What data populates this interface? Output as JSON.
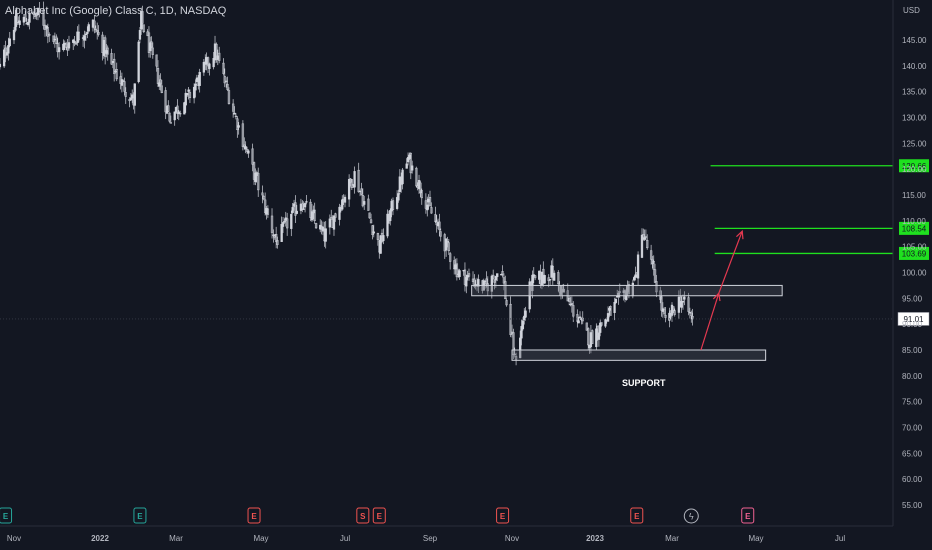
{
  "header": {
    "title": "Alphabet Inc (Google) Class C, 1D, NASDAQ"
  },
  "annotations": {
    "support_label": "SUPPORT"
  },
  "colors": {
    "background": "#131722",
    "candle": "#d1d4dc",
    "target_line": "#1fe01f",
    "target_badge": "#1fe01f",
    "arrow": "#e53950",
    "zone_fill": "#50535e",
    "zone_border": "#d1d4dc",
    "earnings_green": "#26a69a",
    "earnings_red": "#ef5350"
  },
  "chart_data": {
    "type": "candlestick",
    "title": "Alphabet Inc (Google) Class C, 1D, NASDAQ",
    "y_unit": "USD",
    "ylim": [
      51.5,
      153
    ],
    "y_ticks": [
      "145.00",
      "140.00",
      "135.00",
      "130.00",
      "125.00",
      "120.00",
      "115.00",
      "110.00",
      "105.00",
      "100.00",
      "95.00",
      "90.00",
      "85.00",
      "80.00",
      "75.00",
      "70.00",
      "65.00",
      "60.00",
      "55.00"
    ],
    "y_tick_values": [
      145,
      140,
      135,
      130,
      125,
      120,
      115,
      110,
      105,
      100,
      95,
      90,
      85,
      80,
      75,
      70,
      65,
      60,
      55
    ],
    "x_ticks": [
      "Nov",
      "2022",
      "Mar",
      "May",
      "Jul",
      "Sep",
      "Nov",
      "2023",
      "Mar",
      "May",
      "Jul"
    ],
    "x_tick_dates": [
      "2021-11",
      "2022-01",
      "2022-03",
      "2022-05",
      "2022-07",
      "2022-09",
      "2022-11",
      "2023-01",
      "2023-03",
      "2023-05",
      "2023-07"
    ],
    "price_path": [
      {
        "date": "2021-10-20",
        "close": 138
      },
      {
        "date": "2021-11-01",
        "close": 148
      },
      {
        "date": "2021-11-19",
        "close": 150
      },
      {
        "date": "2021-12-03",
        "close": 143
      },
      {
        "date": "2021-12-27",
        "close": 148
      },
      {
        "date": "2022-01-10",
        "close": 140
      },
      {
        "date": "2022-01-27",
        "close": 133
      },
      {
        "date": "2022-02-02",
        "close": 149
      },
      {
        "date": "2022-02-24",
        "close": 130
      },
      {
        "date": "2022-03-10",
        "close": 134
      },
      {
        "date": "2022-03-29",
        "close": 143
      },
      {
        "date": "2022-04-14",
        "close": 129
      },
      {
        "date": "2022-05-12",
        "close": 106
      },
      {
        "date": "2022-05-30",
        "close": 114
      },
      {
        "date": "2022-06-16",
        "close": 107
      },
      {
        "date": "2022-07-08",
        "close": 119
      },
      {
        "date": "2022-07-26",
        "close": 105
      },
      {
        "date": "2022-08-16",
        "close": 122
      },
      {
        "date": "2022-09-06",
        "close": 109
      },
      {
        "date": "2022-09-22",
        "close": 100
      },
      {
        "date": "2022-10-12",
        "close": 97
      },
      {
        "date": "2022-10-24",
        "close": 101
      },
      {
        "date": "2022-11-03",
        "close": 83
      },
      {
        "date": "2022-11-15",
        "close": 98
      },
      {
        "date": "2022-11-30",
        "close": 100
      },
      {
        "date": "2022-12-28",
        "close": 87
      },
      {
        "date": "2023-01-12",
        "close": 92
      },
      {
        "date": "2023-02-01",
        "close": 99
      },
      {
        "date": "2023-02-07",
        "close": 108
      },
      {
        "date": "2023-02-24",
        "close": 90
      },
      {
        "date": "2023-03-07",
        "close": 95
      },
      {
        "date": "2023-03-16",
        "close": 91
      }
    ],
    "last_price": "91.01",
    "last_price_value": 91.01,
    "target_levels": [
      {
        "label": "120.66",
        "value": 120.66
      },
      {
        "label": "108.54",
        "value": 108.54
      },
      {
        "label": "103.69",
        "value": 103.69
      }
    ],
    "zones": [
      {
        "name": "resistance",
        "from": 95.5,
        "to": 97.5,
        "start": "2022-10-02",
        "end": "2023-05-20"
      },
      {
        "name": "support",
        "from": 83,
        "to": 85,
        "start": "2022-11-01",
        "end": "2023-05-08"
      }
    ],
    "projection_arrows": [
      {
        "from": {
          "date": "2023-03-22",
          "value": 85
        },
        "to": {
          "date": "2023-04-04",
          "value": 96
        }
      },
      {
        "from": {
          "date": "2023-04-04",
          "value": 96
        },
        "to": {
          "date": "2023-04-21",
          "value": 108
        }
      }
    ],
    "earnings_events": [
      {
        "date": "2021-10-26",
        "type": "E",
        "color": "green"
      },
      {
        "date": "2022-02-01",
        "type": "E",
        "color": "green"
      },
      {
        "date": "2022-04-26",
        "type": "E",
        "color": "red"
      },
      {
        "date": "2022-07-14",
        "type": "S",
        "color": "red"
      },
      {
        "date": "2022-07-26",
        "type": "E",
        "color": "red"
      },
      {
        "date": "2022-10-25",
        "type": "E",
        "color": "red"
      },
      {
        "date": "2023-02-02",
        "type": "E",
        "color": "red"
      },
      {
        "date": "2023-03-15",
        "type": "news",
        "color": "gray"
      },
      {
        "date": "2023-04-25",
        "type": "E",
        "color": "pink"
      }
    ]
  }
}
